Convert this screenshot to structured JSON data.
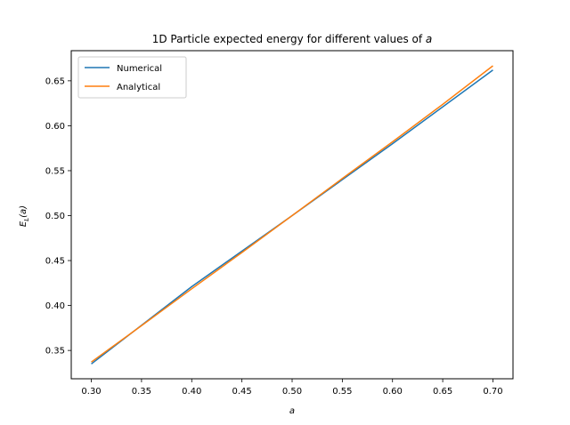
{
  "chart_data": {
    "type": "line",
    "title_main": "1D Particle expected energy for different values of ",
    "title_var": "a",
    "xlabel": "a",
    "ylabel_main": "E",
    "ylabel_sub": "L",
    "ylabel_arg": "(a)",
    "xlim": [
      0.28,
      0.72
    ],
    "ylim": [
      0.3185,
      0.6835
    ],
    "xticks": [
      0.3,
      0.35,
      0.4,
      0.45,
      0.5,
      0.55,
      0.6,
      0.65,
      0.7
    ],
    "xtick_labels": [
      "0.30",
      "0.35",
      "0.40",
      "0.45",
      "0.50",
      "0.55",
      "0.60",
      "0.65",
      "0.70"
    ],
    "yticks": [
      0.35,
      0.4,
      0.45,
      0.5,
      0.55,
      0.6,
      0.65
    ],
    "ytick_labels": [
      "0.35",
      "0.40",
      "0.45",
      "0.50",
      "0.55",
      "0.60",
      "0.65"
    ],
    "legend_position": "upper-left",
    "grid": false,
    "series": [
      {
        "name": "Numerical",
        "color": "#1f77b4",
        "x": [
          0.3,
          0.4,
          0.5,
          0.6,
          0.7
        ],
        "y": [
          0.335,
          0.421,
          0.5,
          0.58,
          0.662
        ]
      },
      {
        "name": "Analytical",
        "color": "#ff7f0e",
        "x": [
          0.3,
          0.35,
          0.4,
          0.45,
          0.5,
          0.55,
          0.6,
          0.65,
          0.7
        ],
        "y": [
          0.3371,
          0.3776,
          0.4186,
          0.459,
          0.5,
          0.5413,
          0.5821,
          0.6238,
          0.6667
        ]
      }
    ]
  }
}
